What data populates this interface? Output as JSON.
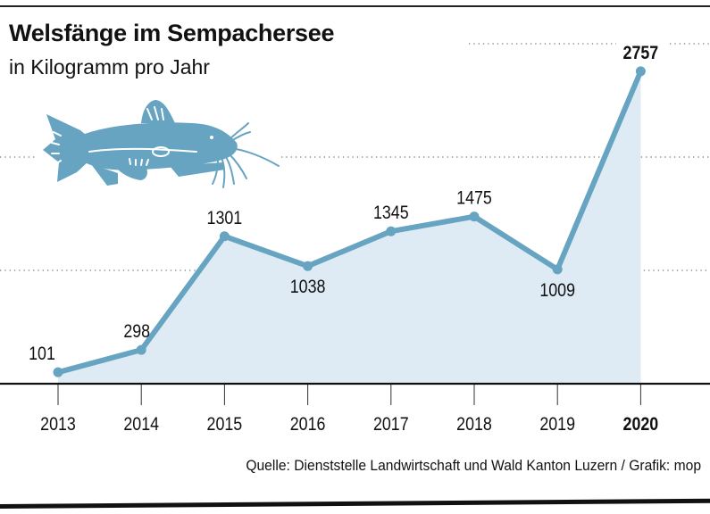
{
  "header": {
    "title": "Welsfänge im Sempachersee",
    "subtitle": "in Kilogramm pro Jahr"
  },
  "footer": {
    "source": "Quelle: Dienststelle Landwirtschaft und Wald Kanton Luzern / Grafik: mop"
  },
  "illustration": {
    "icon": "catfish-icon",
    "color": "#67a4c2"
  },
  "colors": {
    "line": "#67a4c2",
    "area": "#deebf4",
    "text": "#111111",
    "grid": "#777777"
  },
  "chart_data": {
    "type": "area",
    "title": "Welsfänge im Sempachersee",
    "subtitle": "in Kilogramm pro Jahr",
    "xlabel": "",
    "ylabel": "Kilogramm",
    "categories": [
      "2013",
      "2014",
      "2015",
      "2016",
      "2017",
      "2018",
      "2019",
      "2020"
    ],
    "highlight_category": "2020",
    "series": [
      {
        "name": "Welsfänge (kg)",
        "values": [
          101,
          298,
          1301,
          1038,
          1345,
          1475,
          1009,
          2757
        ]
      }
    ],
    "data_labels": [
      "101",
      "298",
      "1301",
      "1038",
      "1345",
      "1475",
      "1009",
      "2757"
    ],
    "ylim": [
      0,
      3000
    ],
    "gridlines": [
      1000,
      2000,
      3000
    ],
    "grid": true,
    "legend": "none"
  }
}
